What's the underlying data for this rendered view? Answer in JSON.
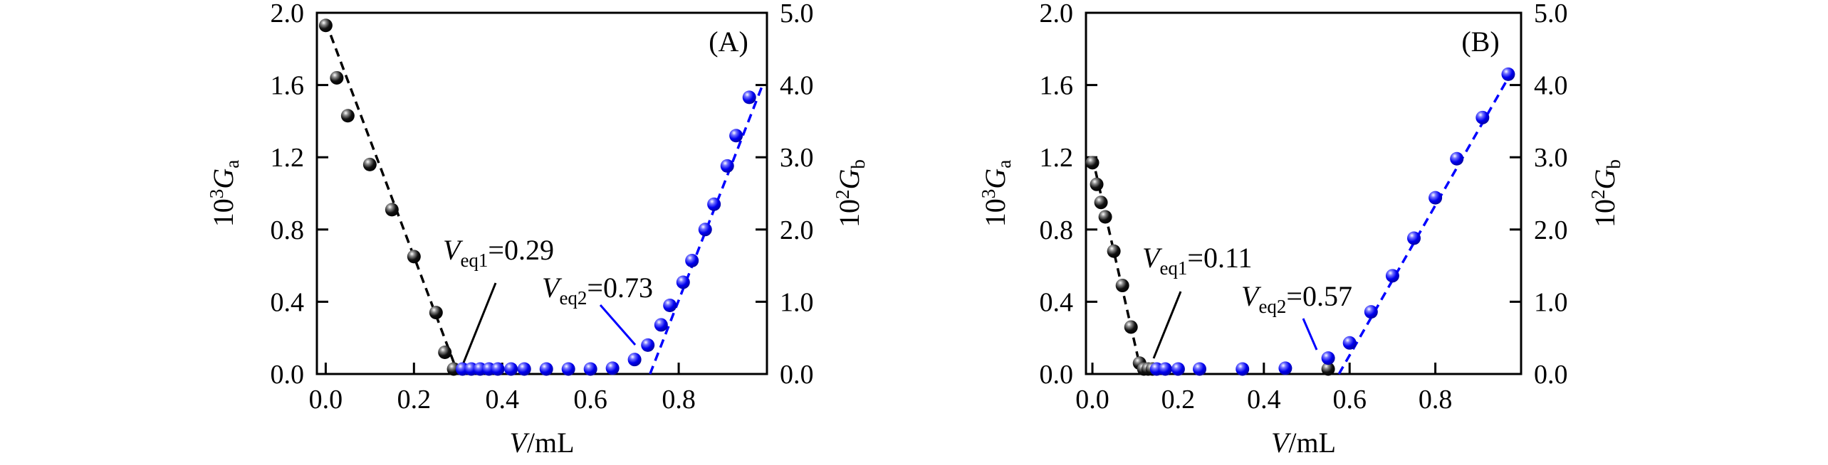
{
  "chart_data": [
    {
      "type": "scatter",
      "panel_label": "(A)",
      "xlabel": {
        "var": "V",
        "unit": "/mL"
      },
      "ylabel_left": {
        "base": "10",
        "exp": "3",
        "var": "G",
        "sub": "a"
      },
      "ylabel_right": {
        "base": "10",
        "exp": "2",
        "var": "G",
        "sub": "b"
      },
      "xlim": [
        -0.02,
        1.0
      ],
      "ylim_left": [
        0,
        2.0
      ],
      "ylim_right": [
        0,
        5.0
      ],
      "xticks": [
        "0.0",
        "0.2",
        "0.4",
        "0.6",
        "0.8"
      ],
      "yticks_left": [
        "0.0",
        "0.4",
        "0.8",
        "1.2",
        "1.6",
        "2.0"
      ],
      "yticks_right": [
        "0.0",
        "1.0",
        "2.0",
        "3.0",
        "4.0",
        "5.0"
      ],
      "series": [
        {
          "name": "Ga",
          "axis": "left",
          "color": "#000000",
          "x": [
            0.0,
            0.025,
            0.05,
            0.1,
            0.15,
            0.2,
            0.25,
            0.27,
            0.29
          ],
          "y": [
            1.93,
            1.64,
            1.43,
            1.16,
            0.91,
            0.65,
            0.34,
            0.12,
            0.02
          ],
          "fit": [
            [
              0.0,
              1.95
            ],
            [
              0.3,
              0.0
            ]
          ]
        },
        {
          "name": "Gb",
          "axis": "right",
          "color": "#0000ff",
          "x": [
            0.31,
            0.33,
            0.35,
            0.37,
            0.39,
            0.42,
            0.45,
            0.5,
            0.55,
            0.6,
            0.65,
            0.7,
            0.73,
            0.76,
            0.78,
            0.81,
            0.83,
            0.86,
            0.88,
            0.91,
            0.93,
            0.96
          ],
          "y": [
            0.02,
            0.02,
            0.02,
            0.02,
            0.03,
            0.03,
            0.03,
            0.03,
            0.04,
            0.05,
            0.08,
            0.2,
            0.4,
            0.68,
            0.95,
            1.27,
            1.57,
            2.0,
            2.35,
            2.88,
            3.3,
            3.83
          ],
          "fit": [
            [
              0.735,
              0.0
            ],
            [
              0.99,
              4.0
            ]
          ]
        }
      ],
      "annotations": [
        {
          "var": "V",
          "sub": "eq1",
          "text": "=0.29",
          "color": "#000000",
          "at": 0.29
        },
        {
          "var": "V",
          "sub": "eq2",
          "text": "=0.73",
          "color": "#0000ff",
          "at": 0.73
        }
      ]
    },
    {
      "type": "scatter",
      "panel_label": "(B)",
      "xlabel": {
        "var": "V",
        "unit": "/mL"
      },
      "ylabel_left": {
        "base": "10",
        "exp": "3",
        "var": "G",
        "sub": "a"
      },
      "ylabel_right": {
        "base": "10",
        "exp": "2",
        "var": "G",
        "sub": "b"
      },
      "xlim": [
        -0.015,
        1.0
      ],
      "ylim_left": [
        0,
        2.0
      ],
      "ylim_right": [
        0,
        5.0
      ],
      "xticks": [
        "0.0",
        "0.2",
        "0.4",
        "0.6",
        "0.8"
      ],
      "yticks_left": [
        "0.0",
        "0.4",
        "0.8",
        "1.2",
        "1.6",
        "2.0"
      ],
      "yticks_right": [
        "0.0",
        "1.0",
        "2.0",
        "3.0",
        "4.0",
        "5.0"
      ],
      "series": [
        {
          "name": "Ga",
          "axis": "left",
          "color": "#000000",
          "x": [
            0.0,
            0.01,
            0.02,
            0.03,
            0.05,
            0.07,
            0.09,
            0.11,
            0.12,
            0.13,
            0.14,
            0.55
          ],
          "y": [
            1.17,
            1.05,
            0.95,
            0.87,
            0.68,
            0.49,
            0.26,
            0.06,
            0.02,
            0.01,
            0.005,
            0.0
          ],
          "fit": [
            [
              0.0,
              1.2
            ],
            [
              0.115,
              0.0
            ]
          ]
        },
        {
          "name": "Gb",
          "axis": "right",
          "color": "#0000ff",
          "x": [
            0.15,
            0.17,
            0.2,
            0.25,
            0.35,
            0.45,
            0.55,
            0.6,
            0.65,
            0.7,
            0.75,
            0.8,
            0.85,
            0.91,
            0.97
          ],
          "y": [
            0.02,
            0.02,
            0.02,
            0.03,
            0.04,
            0.08,
            0.22,
            0.43,
            0.86,
            1.36,
            1.88,
            2.44,
            2.98,
            3.55,
            4.15
          ],
          "fit": [
            [
              0.575,
              0.0
            ],
            [
              0.975,
              4.15
            ]
          ]
        }
      ],
      "annotations": [
        {
          "var": "V",
          "sub": "eq1",
          "text": "=0.11",
          "color": "#000000",
          "at": 0.11
        },
        {
          "var": "V",
          "sub": "eq2",
          "text": "=0.57",
          "color": "#0000ff",
          "at": 0.57
        }
      ]
    }
  ]
}
